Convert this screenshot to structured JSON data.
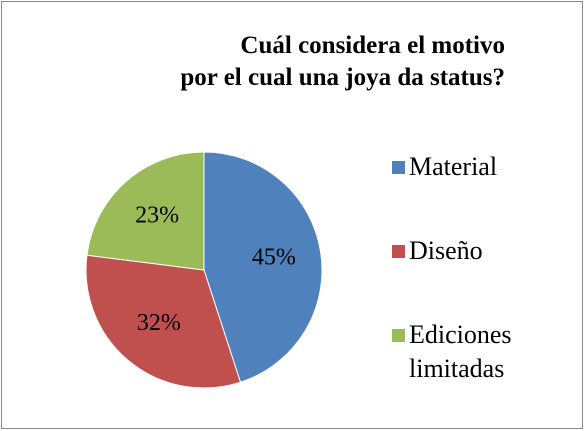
{
  "chart_data": {
    "type": "pie",
    "title": "Cuál considera el motivo\npor el cual una joya da status?",
    "categories": [
      "Material",
      "Diseño",
      "Ediciones limitadas"
    ],
    "values": [
      45,
      32,
      23
    ],
    "value_labels": [
      "45%",
      "32%",
      "23%"
    ],
    "colors": [
      "#4f81bd",
      "#c0504d",
      "#9bbb59"
    ],
    "legend": "right"
  }
}
